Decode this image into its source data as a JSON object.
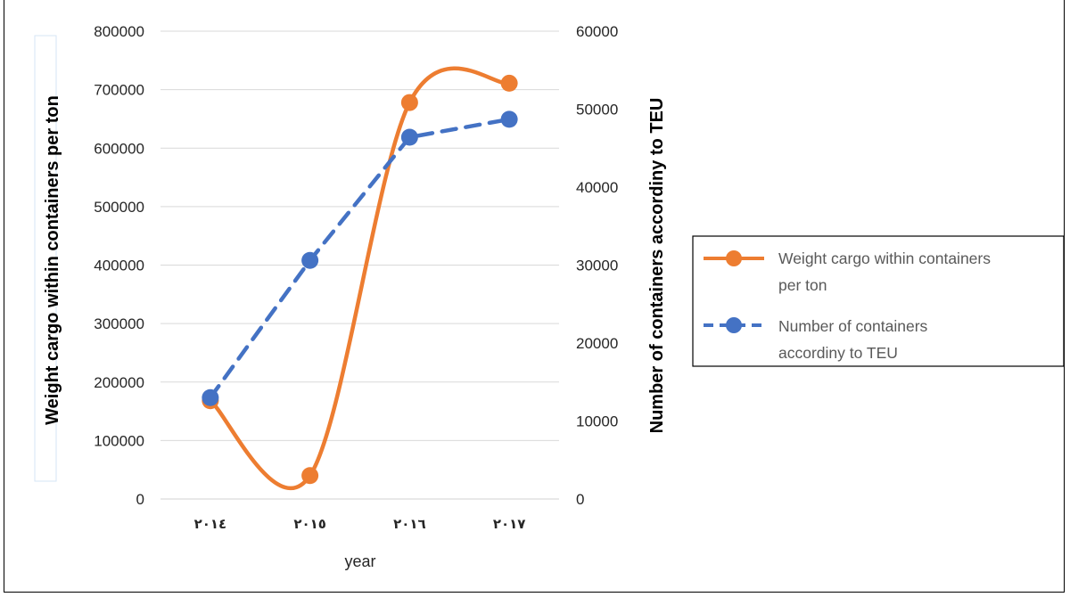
{
  "chart_data": {
    "type": "line",
    "categories": [
      "٢٠١٤",
      "٢٠١٥",
      "٢٠١٦",
      "٢٠١٧"
    ],
    "xlabel": "year",
    "ylabel": "Weight cargo within containers per ton",
    "y2label": "Number of containers accordiny to TEU",
    "ylim": [
      0,
      800000
    ],
    "y2lim": [
      0,
      60000
    ],
    "yticks": [
      "0",
      "100000",
      "200000",
      "300000",
      "400000",
      "500000",
      "600000",
      "700000",
      "800000"
    ],
    "y2ticks": [
      "0",
      "10000",
      "20000",
      "30000",
      "40000",
      "50000",
      "60000"
    ],
    "grid": true,
    "legend_position": "right",
    "series": [
      {
        "name": "Weight cargo within containers per ton",
        "axis": "left",
        "style": "smooth-solid",
        "color": "#ED7D31",
        "values": [
          168000,
          40000,
          678000,
          711000
        ]
      },
      {
        "name": "Number of containers accordiny to TEU",
        "axis": "right",
        "style": "dashed",
        "color": "#4472C4",
        "values": [
          13000,
          30600,
          46400,
          48700
        ]
      }
    ],
    "legend": {
      "items": [
        {
          "lines": [
            "Weight cargo within containers",
            "per ton"
          ]
        },
        {
          "lines": [
            "Number of containers",
            "accordiny to TEU"
          ]
        }
      ]
    }
  }
}
